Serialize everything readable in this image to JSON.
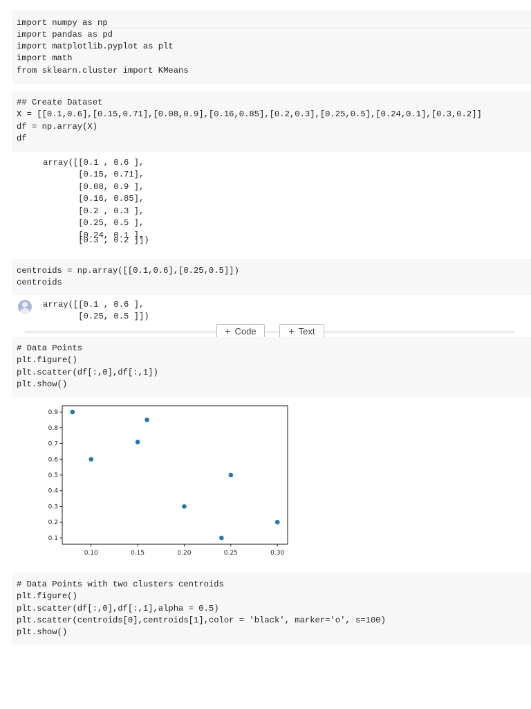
{
  "cells": {
    "imports": {
      "lines": [
        "import numpy as np",
        "import pandas as pd",
        "import matplotlib.pyplot as plt",
        "import math",
        "from sklearn.cluster import KMeans"
      ]
    },
    "dataset": {
      "lines": [
        "## Create Dataset",
        "X = [[0.1,0.6],[0.15,0.71],[0.08,0.9],[0.16,0.85],[0.2,0.3],[0.25,0.5],[0.24,0.1],[0.3,0.2]]",
        "df = np.array(X)",
        "df"
      ],
      "output": [
        "array([[0.1 , 0.6 ],",
        "       [0.15, 0.71],",
        "       [0.08, 0.9 ],",
        "       [0.16, 0.85],",
        "       [0.2 , 0.3 ],",
        "       [0.25, 0.5 ],",
        "       [0.24, 0.1 ],",
        "       [0.3 , 0.2 ]])"
      ]
    },
    "centroids": {
      "lines": [
        "centroids = np.array([[0.1,0.6],[0.25,0.5]])",
        "centroids"
      ],
      "output": [
        "array([[0.1 , 0.6 ],",
        "       [0.25, 0.5 ]])"
      ]
    },
    "scatter": {
      "lines": [
        "# Data Points",
        "plt.figure()",
        "plt.scatter(df[:,0],df[:,1])",
        "plt.show()"
      ]
    },
    "clusters": {
      "lines": [
        "# Data Points with two clusters centroids",
        "plt.figure()",
        "plt.scatter(df[:,0],df[:,1],alpha = 0.5)",
        "plt.scatter(centroids[0],centroids[1],color = 'black', marker='o', s=100)",
        "plt.show()"
      ]
    }
  },
  "toolbar": {
    "code_label": "Code",
    "text_label": "Text",
    "plus": "+"
  },
  "chart_data": {
    "type": "scatter",
    "x": [
      0.1,
      0.15,
      0.08,
      0.16,
      0.2,
      0.25,
      0.24,
      0.3
    ],
    "y": [
      0.6,
      0.71,
      0.9,
      0.85,
      0.3,
      0.5,
      0.1,
      0.2
    ],
    "xticks": [
      "0.10",
      "0.15",
      "0.20",
      "0.25",
      "0.30"
    ],
    "yticks": [
      "0.1",
      "0.2",
      "0.3",
      "0.4",
      "0.5",
      "0.6",
      "0.7",
      "0.8",
      "0.9"
    ],
    "xlim": [
      0.069,
      0.311
    ],
    "ylim": [
      0.06,
      0.94
    ],
    "color": "#1f77b4",
    "title": "",
    "xlabel": "",
    "ylabel": "",
    "grid": false
  }
}
